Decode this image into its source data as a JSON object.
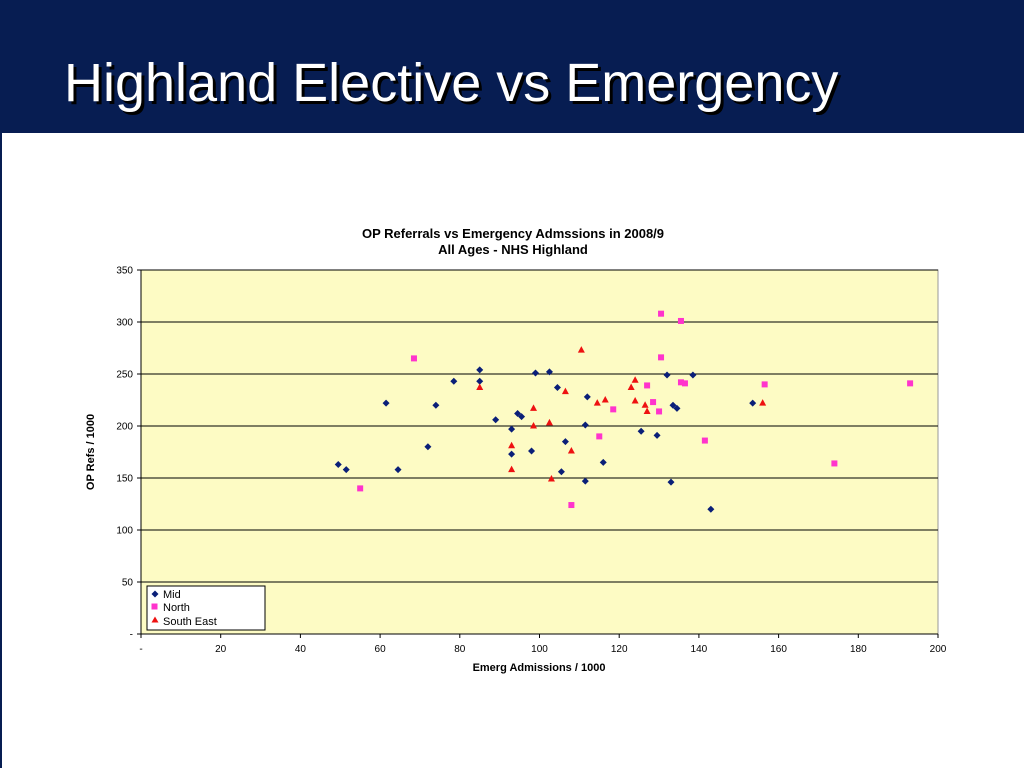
{
  "slide": {
    "title": "Highland Elective vs Emergency"
  },
  "colors": {
    "title_bar": "#071d52",
    "plot_background": "#fdfbc4"
  },
  "chart_data": {
    "type": "scatter",
    "title": "OP Referrals vs Emergency  Admssions in 2008/9",
    "subtitle": "All Ages - NHS Highland",
    "xlabel": "Emerg Admissions / 1000",
    "ylabel": "OP Refs / 1000",
    "xlim": [
      0,
      200
    ],
    "ylim": [
      0,
      350
    ],
    "xticks": [
      0,
      20,
      40,
      60,
      80,
      100,
      120,
      140,
      160,
      180,
      200
    ],
    "xtick_labels": [
      "-",
      "20",
      "40",
      "60",
      "80",
      "100",
      "120",
      "140",
      "160",
      "180",
      "200"
    ],
    "yticks": [
      0,
      50,
      100,
      150,
      200,
      250,
      300,
      350
    ],
    "ytick_labels": [
      "-",
      "50",
      "100",
      "150",
      "200",
      "250",
      "300",
      "350"
    ],
    "grid": "horizontal",
    "legend": "bottom-left",
    "series": [
      {
        "name": "Mid",
        "marker": "diamond",
        "color": "#0a1f78",
        "points": [
          [
            49.5,
            163
          ],
          [
            51.5,
            158
          ],
          [
            61.5,
            222
          ],
          [
            64.5,
            158
          ],
          [
            72,
            180
          ],
          [
            74,
            220
          ],
          [
            78.5,
            243
          ],
          [
            85,
            254
          ],
          [
            85,
            243
          ],
          [
            89,
            206
          ],
          [
            93,
            197
          ],
          [
            93,
            173
          ],
          [
            94.5,
            212
          ],
          [
            95.5,
            209
          ],
          [
            98,
            176
          ],
          [
            99,
            251
          ],
          [
            102.5,
            252
          ],
          [
            104.5,
            237
          ],
          [
            105.5,
            156
          ],
          [
            106.5,
            185
          ],
          [
            111.5,
            201
          ],
          [
            111.5,
            147
          ],
          [
            112,
            228
          ],
          [
            116,
            165
          ],
          [
            125.5,
            195
          ],
          [
            129.5,
            191
          ],
          [
            132,
            249
          ],
          [
            133,
            146
          ],
          [
            133.5,
            220
          ],
          [
            134.5,
            217
          ],
          [
            138.5,
            249
          ],
          [
            143,
            120
          ],
          [
            153.5,
            222
          ]
        ]
      },
      {
        "name": "North",
        "marker": "square",
        "color": "#ff33cc",
        "points": [
          [
            55,
            140
          ],
          [
            68.5,
            265
          ],
          [
            108,
            124
          ],
          [
            115,
            190
          ],
          [
            118.5,
            216
          ],
          [
            127,
            239
          ],
          [
            128.5,
            223
          ],
          [
            130,
            214
          ],
          [
            130.5,
            266
          ],
          [
            130.5,
            308
          ],
          [
            135.5,
            301
          ],
          [
            135.5,
            242
          ],
          [
            136.5,
            241
          ],
          [
            141.5,
            186
          ],
          [
            156.5,
            240
          ],
          [
            174,
            164
          ],
          [
            193,
            241
          ]
        ]
      },
      {
        "name": "South East",
        "marker": "triangle",
        "color": "#ee1111",
        "points": [
          [
            85,
            237
          ],
          [
            93,
            181
          ],
          [
            93,
            158
          ],
          [
            98.5,
            217
          ],
          [
            98.5,
            200
          ],
          [
            102.5,
            203
          ],
          [
            103,
            149
          ],
          [
            106.5,
            233
          ],
          [
            108,
            176
          ],
          [
            110.5,
            273
          ],
          [
            114.5,
            222
          ],
          [
            116.5,
            225
          ],
          [
            123,
            237
          ],
          [
            124,
            244
          ],
          [
            124,
            224
          ],
          [
            126.5,
            220
          ],
          [
            127,
            214
          ],
          [
            156,
            222
          ]
        ]
      }
    ]
  }
}
